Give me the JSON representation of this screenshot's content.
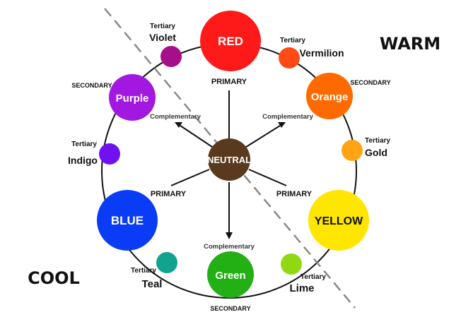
{
  "zones": {
    "warm": "WARM",
    "cool": "COOL"
  },
  "center": {
    "label": "NEUTRAL",
    "color": "#5a3a1e"
  },
  "colors": {
    "red": {
      "label": "RED",
      "color": "#ff1a1a"
    },
    "vermilion": {
      "label": "Vermilion",
      "color": "#ff4a16"
    },
    "orange": {
      "label": "Orange",
      "color": "#ff6a00"
    },
    "gold": {
      "label": "Gold",
      "color": "#ffa514"
    },
    "yellow": {
      "label": "YELLOW",
      "color": "#ffe600"
    },
    "lime": {
      "label": "Lime",
      "color": "#8fd812"
    },
    "green": {
      "label": "Green",
      "color": "#22b014"
    },
    "teal": {
      "label": "Teal",
      "color": "#12a38e"
    },
    "blue": {
      "label": "BLUE",
      "color": "#0a3cf5"
    },
    "indigo": {
      "label": "Indigo",
      "color": "#6f12ef"
    },
    "purple": {
      "label": "Purple",
      "color": "#a218e0"
    },
    "violet": {
      "label": "Violet",
      "color": "#a5108a"
    }
  },
  "tags": {
    "primary": "PRIMARY",
    "secondary": "SECONDARY",
    "tertiary": "Tertiary",
    "complementary": "Complementary"
  }
}
